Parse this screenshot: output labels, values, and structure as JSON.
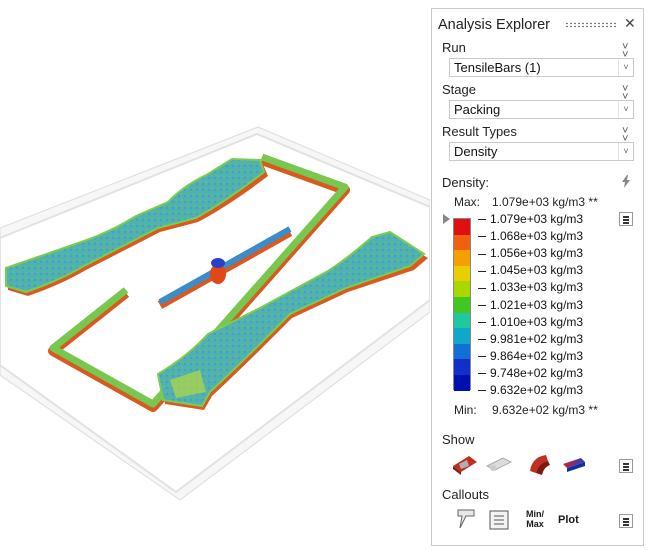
{
  "panel": {
    "title": "Analysis Explorer",
    "run_label": "Run",
    "run_value": "TensileBars (1)",
    "stage_label": "Stage",
    "stage_value": "Packing",
    "result_types_label": "Result Types",
    "result_type_value": "Density",
    "legend_title": "Density:",
    "max_label": "Max:",
    "max_value": "1.079e+03 kg/m3 **",
    "min_label": "Min:",
    "min_value": "9.632e+02 kg/m3 **",
    "legend_values": [
      "1.079e+03 kg/m3",
      "1.068e+03 kg/m3",
      "1.056e+03 kg/m3",
      "1.045e+03 kg/m3",
      "1.033e+03 kg/m3",
      "1.021e+03 kg/m3",
      "1.010e+03 kg/m3",
      "9.981e+02 kg/m3",
      "9.864e+02 kg/m3",
      "9.748e+02 kg/m3",
      "9.632e+02 kg/m3"
    ],
    "legend_colors": [
      "#e01010",
      "#f06010",
      "#f5a000",
      "#e8d000",
      "#a8d800",
      "#40c820",
      "#20c8a0",
      "#10a8c8",
      "#1070d8",
      "#1030c8",
      "#0010b0"
    ],
    "show_label": "Show",
    "callouts_label": "Callouts",
    "minmax_label": "Min/ Max",
    "plot_label": "Plot"
  },
  "icons": [
    "expand-collapse-icon",
    "close-icon",
    "dropdown-arrow-icon",
    "lightning-icon",
    "menu-icon",
    "show-part-icon",
    "show-mesh-icon",
    "show-section-icon",
    "show-legend-bar-icon",
    "probe-callout-icon",
    "note-callout-icon"
  ]
}
